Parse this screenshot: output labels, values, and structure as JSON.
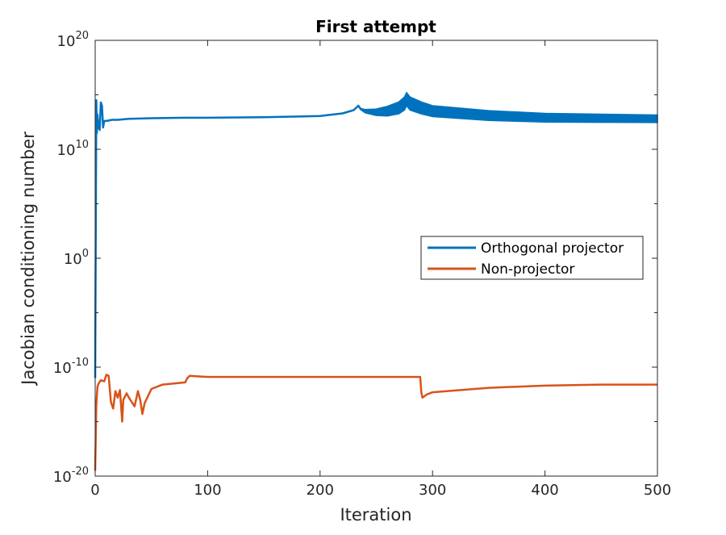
{
  "chart_data": {
    "type": "line",
    "title": "First attempt",
    "xlabel": "Iteration",
    "ylabel": "Jacobian conditioning number",
    "xlim": [
      0,
      500
    ],
    "ylim_log10": [
      -20,
      20
    ],
    "yscale": "log",
    "grid": false,
    "legend_position": "right-middle",
    "x_ticks": [
      0,
      100,
      200,
      300,
      400,
      500
    ],
    "x_tick_labels": [
      "0",
      "100",
      "200",
      "300",
      "400",
      "500"
    ],
    "y_ticks_log10": [
      -20,
      -10,
      0,
      10,
      20
    ],
    "y_tick_labels": [
      {
        "base": "10",
        "exp": "-20"
      },
      {
        "base": "10",
        "exp": "-10"
      },
      {
        "base": "10",
        "exp": "0"
      },
      {
        "base": "10",
        "exp": "10"
      },
      {
        "base": "10",
        "exp": "20"
      }
    ],
    "series": [
      {
        "name": "Orthogonal projector",
        "color": "#0072BD",
        "x": [
          0,
          1,
          1.5,
          2,
          3,
          4,
          5,
          6,
          7,
          8,
          10,
          15,
          20,
          30,
          50,
          80,
          100,
          150,
          200,
          220,
          230,
          234,
          236,
          240,
          250,
          260,
          270,
          275,
          277,
          280,
          290,
          300,
          350,
          400,
          450,
          500
        ],
        "y_log10": [
          -11,
          14.5,
          11.5,
          13.2,
          12.0,
          11.8,
          14.3,
          14.0,
          12.0,
          12.6,
          12.6,
          12.7,
          12.7,
          12.8,
          12.85,
          12.9,
          12.9,
          12.95,
          13.05,
          13.3,
          13.6,
          14.0,
          13.7,
          13.5,
          13.4,
          13.5,
          13.8,
          14.2,
          14.6,
          14.2,
          13.8,
          13.5,
          13.1,
          12.9,
          12.85,
          12.8
        ],
        "y_spread_log10": [
          0,
          0,
          0,
          0,
          0,
          0,
          0,
          0,
          0,
          0,
          0,
          0,
          0,
          0,
          0,
          0,
          0,
          0,
          0,
          0,
          0,
          0,
          0.1,
          0.3,
          0.6,
          0.9,
          1.1,
          1.2,
          1.2,
          1.2,
          1.1,
          1.0,
          0.9,
          0.8,
          0.75,
          0.7
        ]
      },
      {
        "name": "Non-projector",
        "color": "#D95319",
        "x": [
          0,
          1,
          2,
          3,
          5,
          8,
          10,
          12,
          14,
          16,
          18,
          20,
          22,
          24,
          25,
          28,
          30,
          35,
          38,
          40,
          42,
          44,
          50,
          60,
          70,
          80,
          82,
          84,
          100,
          150,
          200,
          250,
          289,
          290,
          291,
          295,
          300,
          350,
          400,
          450,
          500
        ],
        "y_log10": [
          -19.5,
          -13.5,
          -11.8,
          -11.5,
          -11.2,
          -11.3,
          -10.7,
          -10.8,
          -13.2,
          -13.8,
          -12.2,
          -12.8,
          -12.1,
          -15.0,
          -13.0,
          -12.4,
          -12.8,
          -13.6,
          -12.2,
          -13.0,
          -14.3,
          -13.3,
          -12.0,
          -11.6,
          -11.5,
          -11.4,
          -11.0,
          -10.8,
          -10.9,
          -10.9,
          -10.9,
          -10.9,
          -10.9,
          -12.3,
          -12.8,
          -12.5,
          -12.3,
          -11.9,
          -11.7,
          -11.6,
          -11.6
        ]
      }
    ]
  }
}
